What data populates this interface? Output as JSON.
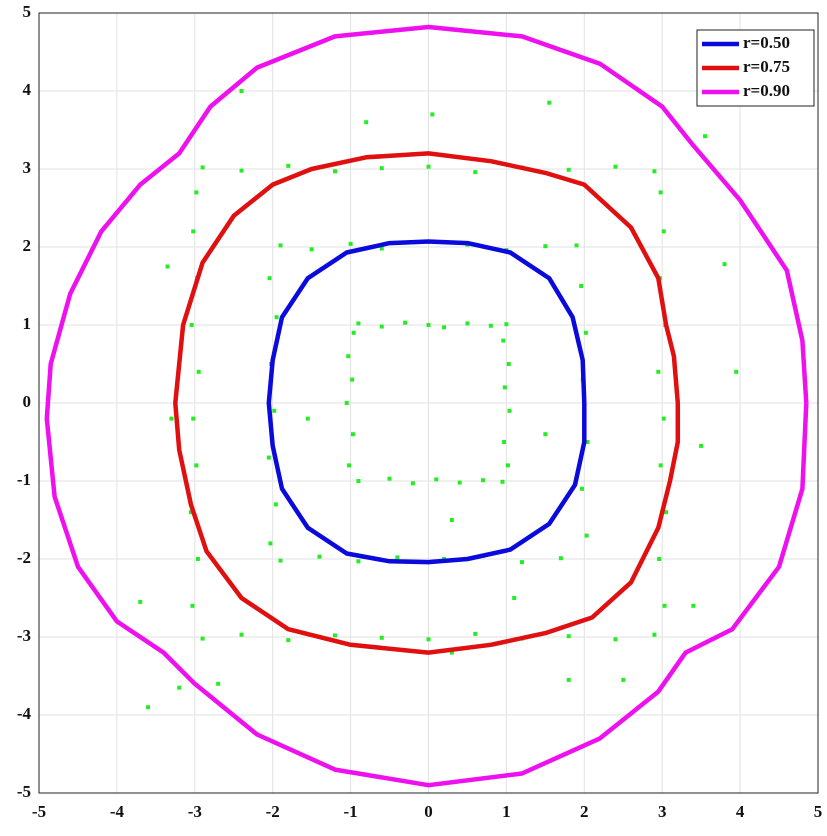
{
  "chart_data": {
    "type": "scatter",
    "xlim": [
      -5,
      5
    ],
    "ylim": [
      -5,
      5
    ],
    "xticks": [
      -5,
      -4,
      -3,
      -2,
      -1,
      0,
      1,
      2,
      3,
      4,
      5
    ],
    "yticks": [
      -5,
      -4,
      -3,
      -2,
      -1,
      0,
      1,
      2,
      3,
      4,
      5
    ],
    "grid": true,
    "legend": "top-right",
    "series": [
      {
        "name": "r=0.50",
        "color": "#0a0adc",
        "mode": "line",
        "x": [
          2.0,
          1.98,
          1.85,
          1.55,
          1.05,
          0.5,
          0,
          -0.5,
          -1.05,
          -1.55,
          -1.88,
          -2.0,
          -2.05,
          -2.0,
          -1.88,
          -1.55,
          -1.05,
          -0.5,
          0,
          0.5,
          1.05,
          1.55,
          1.88,
          2.0,
          2.0
        ],
        "values": [
          0,
          0.55,
          1.1,
          1.6,
          1.93,
          2.05,
          2.07,
          2.05,
          1.93,
          1.6,
          1.1,
          0.55,
          0,
          -0.55,
          -1.1,
          -1.6,
          -1.93,
          -2.03,
          -2.04,
          -2.0,
          -1.88,
          -1.55,
          -1.05,
          -0.5,
          0
        ]
      },
      {
        "name": "r=0.75",
        "color": "#e01010",
        "mode": "line",
        "x": [
          3.2,
          3.15,
          3.05,
          2.95,
          2.6,
          2.0,
          1.5,
          0.8,
          0,
          -0.8,
          -1.5,
          -2.0,
          -2.5,
          -2.9,
          -3.15,
          -3.25,
          -3.2,
          -3.05,
          -2.85,
          -2.4,
          -1.8,
          -1.0,
          0,
          0.8,
          1.5,
          2.1,
          2.6,
          2.95,
          3.1,
          3.2,
          3.2
        ],
        "values": [
          0,
          0.6,
          1.0,
          1.6,
          2.25,
          2.8,
          2.95,
          3.1,
          3.2,
          3.15,
          3.0,
          2.8,
          2.4,
          1.8,
          1.0,
          0,
          -0.6,
          -1.3,
          -1.9,
          -2.5,
          -2.9,
          -3.1,
          -3.2,
          -3.1,
          -2.95,
          -2.75,
          -2.3,
          -1.6,
          -1.0,
          -0.5,
          0
        ]
      },
      {
        "name": "r=0.90",
        "color": "#ee10ee",
        "mode": "line",
        "x": [
          4.85,
          4.8,
          4.6,
          4.0,
          3.4,
          3.0,
          2.2,
          1.2,
          0,
          -1.2,
          -2.2,
          -2.8,
          -3.2,
          -3.7,
          -4.2,
          -4.6,
          -4.85,
          -4.9,
          -4.8,
          -4.5,
          -4.0,
          -3.4,
          -3.0,
          -2.2,
          -1.2,
          0,
          1.2,
          2.2,
          2.95,
          3.3,
          3.9,
          4.5,
          4.8,
          4.85
        ],
        "values": [
          0,
          0.8,
          1.7,
          2.6,
          3.3,
          3.8,
          4.35,
          4.7,
          4.82,
          4.7,
          4.3,
          3.8,
          3.2,
          2.8,
          2.2,
          1.4,
          0.5,
          -0.2,
          -1.2,
          -2.1,
          -2.8,
          -3.2,
          -3.6,
          -4.25,
          -4.7,
          -4.9,
          -4.75,
          -4.3,
          -3.7,
          -3.2,
          -2.9,
          -2.1,
          -1.1,
          0
        ]
      },
      {
        "color": "#22ee22",
        "mode": "points",
        "x": [
          -0.9,
          -0.6,
          -0.3,
          0,
          0.2,
          0.5,
          0.8,
          1.0,
          -0.9,
          -0.5,
          -0.2,
          0.1,
          0.4,
          0.7,
          0.95,
          -1.02,
          -0.97,
          -1.05,
          -0.98,
          -1.03,
          -0.96,
          1.02,
          0.97,
          1.04,
          0.98,
          1.03,
          0.96,
          -1.9,
          -1.5,
          -1.0,
          -0.6,
          0.5,
          1.0,
          1.5,
          1.9,
          -1.9,
          -1.4,
          -0.9,
          -0.4,
          0.2,
          0.7,
          1.2,
          1.7,
          -2.03,
          -1.96,
          -2.05,
          -1.98,
          -2.02,
          -1.95,
          -2.04,
          2.03,
          1.97,
          2.04,
          1.98,
          2.02,
          1.96,
          -2.9,
          -2.4,
          -1.8,
          -1.2,
          -0.6,
          0,
          0.6,
          1.2,
          1.8,
          2.4,
          2.9,
          -2.9,
          -2.4,
          -1.8,
          -1.2,
          -0.6,
          0,
          0.6,
          1.2,
          1.8,
          2.4,
          2.9,
          -3.03,
          -2.96,
          -3.05,
          -2.98,
          -3.02,
          -2.95,
          -3.04,
          -2.97,
          -3.02,
          -2.98,
          3.03,
          2.96,
          3.05,
          2.98,
          3.02,
          2.95,
          3.04,
          2.97,
          3.02,
          2.98,
          -2.4,
          -0.8,
          0.05,
          1.55,
          3.55,
          -3.35,
          3.8,
          3.95,
          -3.3,
          3.5,
          -3.7,
          -3.6,
          -3.2,
          -2.7,
          1.8,
          2.5,
          3.4,
          0.3,
          1.1,
          -1.55,
          1.5,
          0.3
        ],
        "values": [
          1.02,
          0.98,
          1.03,
          1.0,
          0.97,
          1.02,
          0.99,
          1.01,
          -1.0,
          -0.97,
          -1.03,
          -0.98,
          -1.02,
          -0.99,
          -1.01,
          -0.8,
          -0.4,
          0,
          0.3,
          0.6,
          0.9,
          -0.8,
          -0.5,
          -0.1,
          0.2,
          0.5,
          0.8,
          2.02,
          1.97,
          2.04,
          1.98,
          2.03,
          1.96,
          2.01,
          2.02,
          -2.02,
          -1.97,
          -2.03,
          -1.98,
          -2.0,
          -1.96,
          -2.04,
          -1.99,
          -1.8,
          -1.3,
          -0.7,
          -0.1,
          0.5,
          1.1,
          1.6,
          -1.7,
          -1.1,
          -0.5,
          0.3,
          0.9,
          1.5,
          3.02,
          2.98,
          3.04,
          2.97,
          3.01,
          3.03,
          2.96,
          3.02,
          2.99,
          3.03,
          2.97,
          -3.02,
          -2.97,
          -3.04,
          -2.98,
          -3.01,
          -3.03,
          -2.96,
          -3.02,
          -2.99,
          -3.03,
          -2.97,
          -2.6,
          -2.0,
          -1.4,
          -0.8,
          -0.2,
          0.4,
          1.0,
          1.6,
          2.2,
          2.7,
          -2.6,
          -2.0,
          -1.4,
          -0.8,
          -0.2,
          0.4,
          1.0,
          1.6,
          2.2,
          2.7,
          4.0,
          3.6,
          3.7,
          3.85,
          3.42,
          1.75,
          1.78,
          0.4,
          -0.2,
          -0.55,
          -2.55,
          -3.9,
          -3.65,
          -3.6,
          -3.55,
          -3.55,
          -2.6,
          -1.5,
          -2.5,
          -0.2,
          -0.4,
          -3.2
        ]
      }
    ]
  }
}
